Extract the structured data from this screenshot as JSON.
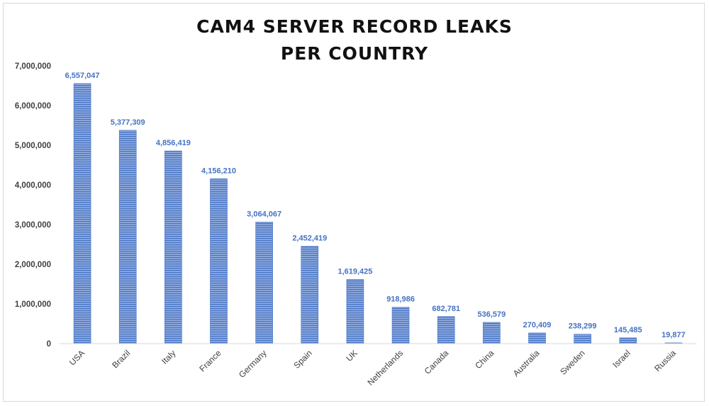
{
  "chart_data": {
    "type": "bar",
    "title_lines": [
      "CAM4 SERVER RECORD LEAKS",
      "PER COUNTRY"
    ],
    "categories": [
      "USA",
      "Brazil",
      "Italy",
      "France",
      "Germany",
      "Spain",
      "UK",
      "Netherlands",
      "Canada",
      "China",
      "Australia",
      "Sweden",
      "Israel",
      "Russia"
    ],
    "values": [
      6557047,
      5377309,
      4856419,
      4156210,
      3064067,
      2452419,
      1619425,
      918986,
      682781,
      536579,
      270409,
      238299,
      145485,
      19877
    ],
    "value_labels": [
      "6,557,047",
      "5,377,309",
      "4,856,419",
      "4,156,210",
      "3,064,067",
      "2,452,419",
      "1,619,425",
      "918,986",
      "682,781",
      "536,579",
      "270,409",
      "238,299",
      "145,485",
      "19,877"
    ],
    "y_ticks": [
      0,
      1000000,
      2000000,
      3000000,
      4000000,
      5000000,
      6000000,
      7000000
    ],
    "y_tick_labels": [
      "0",
      "1,000,000",
      "2,000,000",
      "3,000,000",
      "4,000,000",
      "5,000,000",
      "6,000,000",
      "7,000,000"
    ],
    "ylim": [
      0,
      7000000
    ],
    "xlabel": "",
    "ylabel": "",
    "grid": false,
    "legend": "none",
    "bar_color": "#4472c4",
    "bar_stripe_color": "#8faadc",
    "label_color": "#4472c4"
  }
}
